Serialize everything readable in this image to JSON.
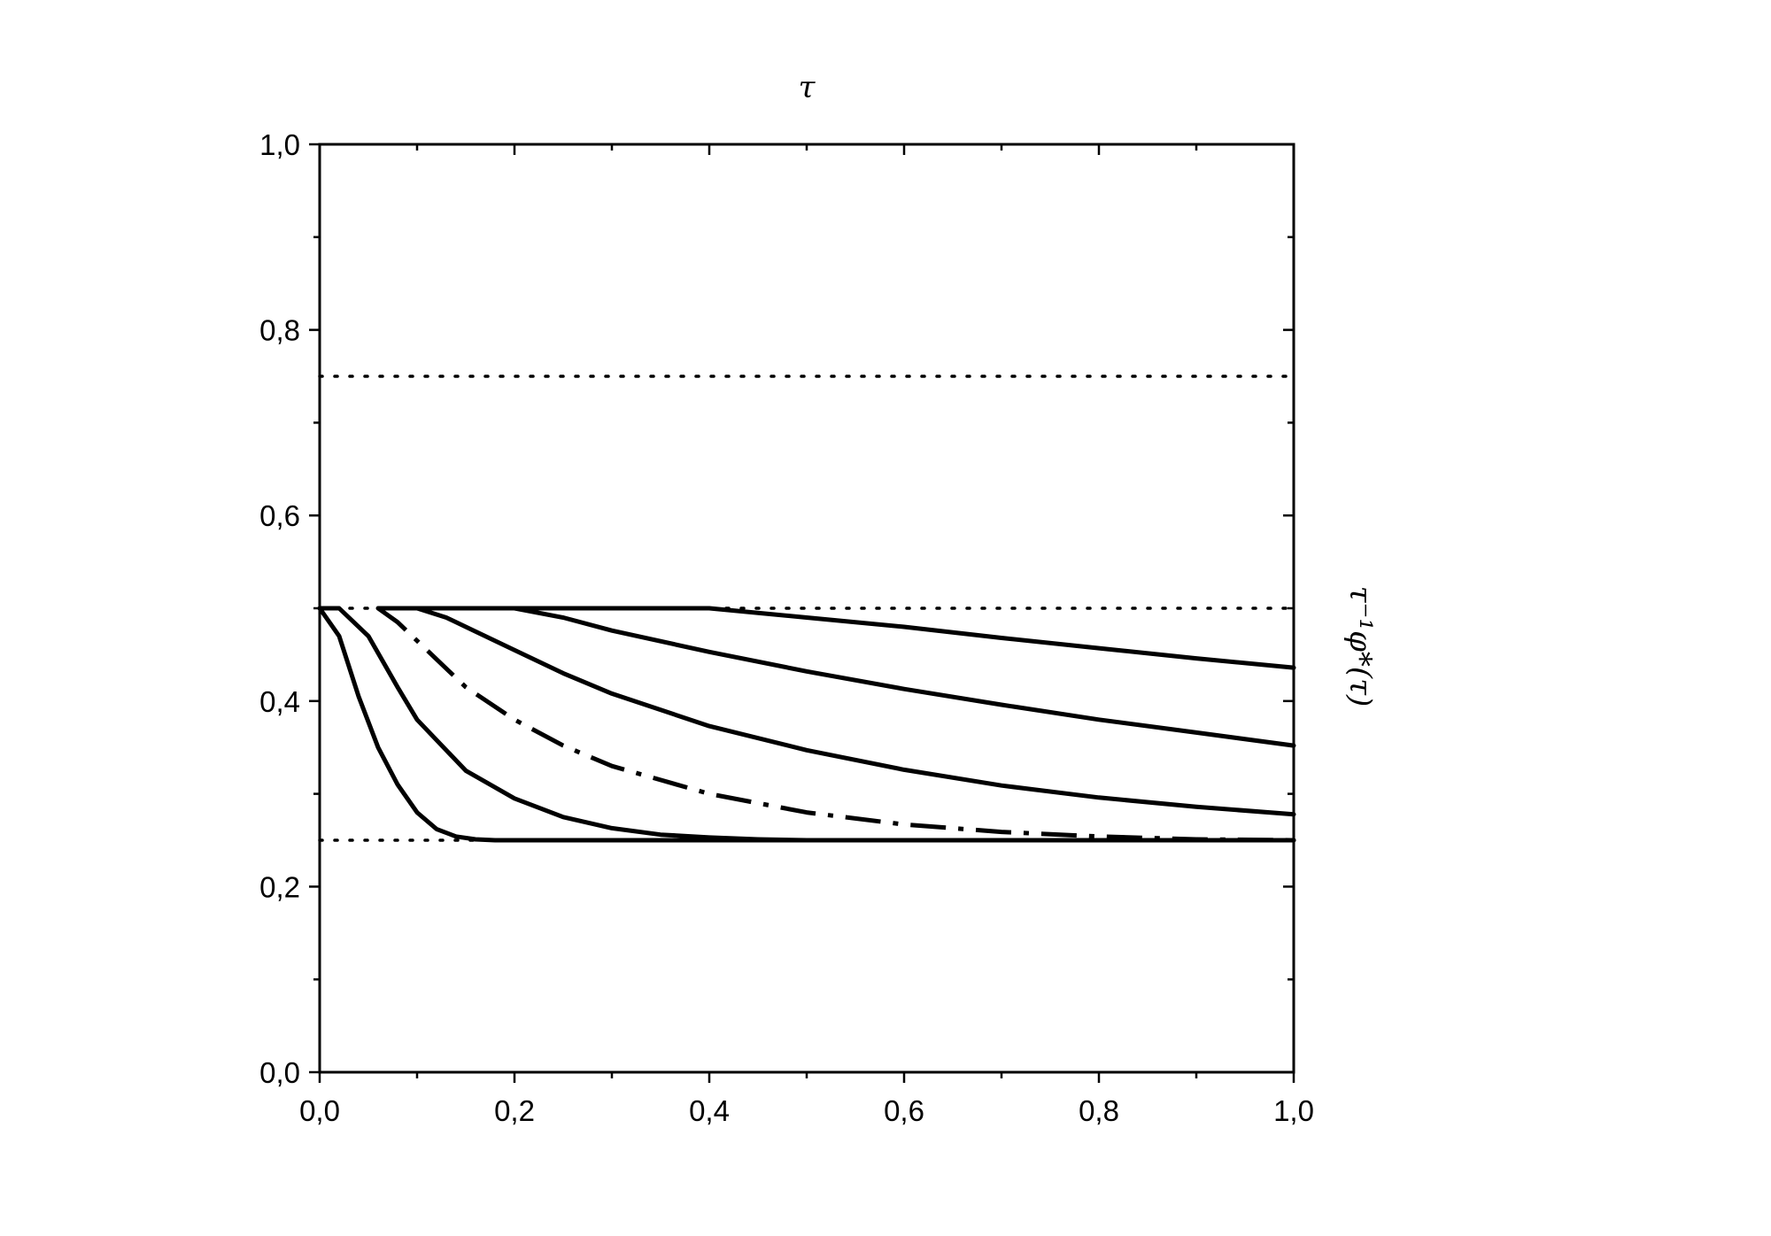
{
  "chart_data": {
    "type": "line",
    "title": "",
    "xlabel": "τ",
    "ylabel": "τ⁻¹φ*(τ)",
    "xlim": [
      0,
      1
    ],
    "ylim": [
      0,
      1
    ],
    "x_ticks": [
      "0,0",
      "0,2",
      "0,4",
      "0,6",
      "0,8",
      "1,0"
    ],
    "y_ticks": [
      "0,0",
      "0,2",
      "0,4",
      "0,6",
      "0,8",
      "1,0"
    ],
    "grid": false,
    "legend": "none",
    "series": [
      {
        "style": "dotted",
        "x": [
          0,
          1
        ],
        "y": [
          0.75,
          0.75
        ]
      },
      {
        "style": "dotted",
        "x": [
          0,
          1
        ],
        "y": [
          0.5,
          0.5
        ]
      },
      {
        "style": "dotted",
        "x": [
          0,
          0.18
        ],
        "y": [
          0.25,
          0.25
        ]
      },
      {
        "style": "solid",
        "x": [
          0,
          0.02,
          0.04,
          0.06,
          0.08,
          0.1,
          0.12,
          0.14,
          0.16,
          0.18,
          0.25,
          0.5,
          1.0
        ],
        "y": [
          0.5,
          0.47,
          0.405,
          0.35,
          0.31,
          0.28,
          0.262,
          0.254,
          0.251,
          0.25,
          0.25,
          0.25,
          0.25
        ]
      },
      {
        "style": "solid",
        "x": [
          0,
          0.02,
          0.05,
          0.08,
          0.1,
          0.15,
          0.2,
          0.25,
          0.3,
          0.35,
          0.4,
          0.45,
          0.5,
          0.6,
          0.8,
          1.0
        ],
        "y": [
          0.5,
          0.5,
          0.47,
          0.415,
          0.38,
          0.325,
          0.295,
          0.275,
          0.263,
          0.256,
          0.253,
          0.251,
          0.25,
          0.25,
          0.25,
          0.25
        ]
      },
      {
        "style": "dashdot",
        "x": [
          0.06,
          0.08,
          0.1,
          0.15,
          0.2,
          0.25,
          0.3,
          0.4,
          0.5,
          0.6,
          0.7,
          0.8,
          0.9,
          1.0
        ],
        "y": [
          0.5,
          0.485,
          0.465,
          0.415,
          0.38,
          0.352,
          0.33,
          0.3,
          0.28,
          0.267,
          0.259,
          0.254,
          0.251,
          0.25
        ]
      },
      {
        "style": "solid",
        "x": [
          0.06,
          0.1,
          0.13,
          0.16,
          0.2,
          0.25,
          0.3,
          0.4,
          0.5,
          0.6,
          0.7,
          0.8,
          0.9,
          1.0
        ],
        "y": [
          0.5,
          0.5,
          0.49,
          0.475,
          0.455,
          0.43,
          0.408,
          0.373,
          0.347,
          0.326,
          0.309,
          0.296,
          0.286,
          0.278
        ]
      },
      {
        "style": "solid",
        "x": [
          0.1,
          0.2,
          0.25,
          0.3,
          0.4,
          0.5,
          0.6,
          0.7,
          0.8,
          0.9,
          1.0
        ],
        "y": [
          0.5,
          0.5,
          0.49,
          0.476,
          0.453,
          0.432,
          0.413,
          0.396,
          0.38,
          0.366,
          0.352
        ]
      },
      {
        "style": "solid",
        "x": [
          0.2,
          0.3,
          0.4,
          0.5,
          0.6,
          0.7,
          0.8,
          0.9,
          1.0
        ],
        "y": [
          0.5,
          0.5,
          0.5,
          0.49,
          0.48,
          0.468,
          0.457,
          0.446,
          0.436
        ]
      }
    ]
  }
}
